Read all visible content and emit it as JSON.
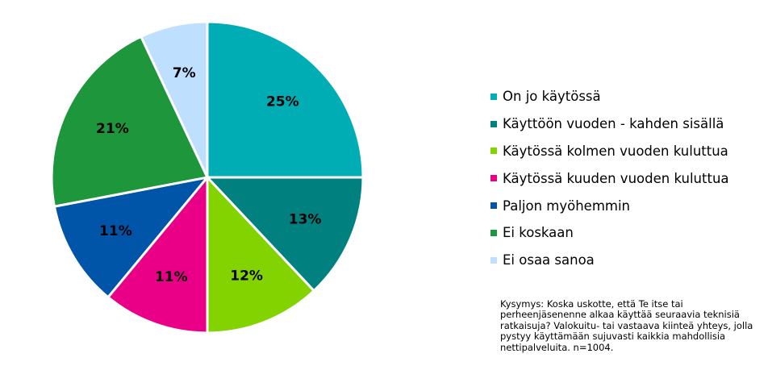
{
  "chart_data": {
    "type": "pie",
    "series": [
      {
        "values": [
          25,
          13,
          12,
          11,
          11,
          21,
          7
        ],
        "labels": [
          "25%",
          "13%",
          "12%",
          "11%",
          "11%",
          "21%",
          "7%"
        ]
      }
    ],
    "categories": [
      "On jo käytössä",
      "Käyttöön vuoden - kahden sisällä",
      "Käytössä kolmen vuoden kuluttua",
      "Käytössä kuuden vuoden kuluttua",
      "Paljon myöhemmin",
      "Ei koskaan",
      "Ei osaa sanoa"
    ],
    "colors": [
      "#00adb5",
      "#008180",
      "#83d300",
      "#ea0086",
      "#0055a9",
      "#1e963b",
      "#bfdfff"
    ],
    "start": "12 o'clock",
    "direction": "clockwise",
    "legend": "right"
  },
  "footnote": "Kysymys: Koska uskotte, että Te itse tai perheenjäsenenne alkaa käyttää seuraavia teknisiä ratkaisuja? Valokuitu- tai vastaava kiinteä yhteys, jolla pystyy käyttämään sujuvasti kaikkia mahdollisia nettipalveluita. n=1004."
}
